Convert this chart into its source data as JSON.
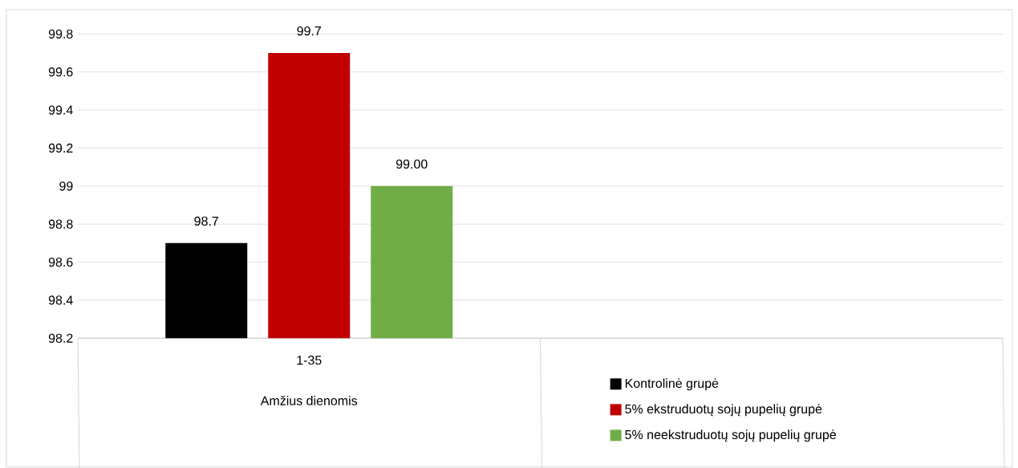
{
  "chart_data": {
    "type": "bar",
    "categories": [
      "1-35",
      null
    ],
    "xlabel": "Amžius dienomis",
    "series": [
      {
        "name": "Kontrolinė grupė",
        "color": "#000000",
        "values": [
          98.7,
          null
        ],
        "value_labels": [
          "98.7",
          null
        ]
      },
      {
        "name": "5% ekstruduotų sojų pupelių grupė",
        "color": "#c00000",
        "values": [
          99.7,
          null
        ],
        "value_labels": [
          "99.7",
          null
        ]
      },
      {
        "name": "5% neekstruduotų sojų pupelių grupė",
        "color": "#70ad47",
        "values": [
          99.0,
          null
        ],
        "value_labels": [
          "99.00",
          null
        ]
      }
    ],
    "ylim": [
      98.2,
      99.8
    ],
    "yticks": [
      98.2,
      98.4,
      98.6,
      98.8,
      99,
      99.2,
      99.4,
      99.6,
      99.8
    ],
    "grid": "y",
    "legend": "bottom right"
  }
}
